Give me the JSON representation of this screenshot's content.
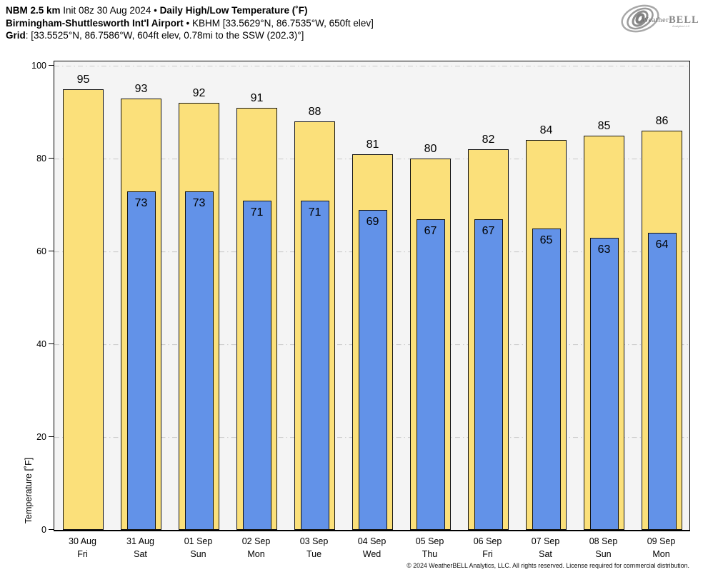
{
  "header": {
    "line1": {
      "model": "NBM 2.5 km",
      "init": "Init 08z 30 Aug 2024",
      "sep": "•",
      "title": "Daily High/Low Temperature (˚F)"
    },
    "line2": {
      "station": "Birmingham-Shuttlesworth Int'l Airport",
      "sep": "•",
      "meta": "KBHM [33.5629°N, 86.7535°W, 650ft elev]"
    },
    "line3": {
      "label": "Grid",
      "value": ": [33.5525°N, 86.7586°W, 604ft elev, 0.78mi to the SSW (202.3)°]"
    }
  },
  "logo": {
    "brand_weather": "Weather",
    "brand_bell": "BELL",
    "sub": "Analytics LLC"
  },
  "chart_data": {
    "type": "bar",
    "title": "Daily High/Low Temperature (°F)",
    "xlabel": "",
    "ylabel": "Temperature [˚F]",
    "ylim": [
      0,
      100
    ],
    "yticks": [
      0,
      20,
      40,
      60,
      80,
      100
    ],
    "grid": true,
    "legend_position": "none",
    "categories": [
      {
        "date": "30 Aug",
        "day": "Fri"
      },
      {
        "date": "31 Aug",
        "day": "Sat"
      },
      {
        "date": "01 Sep",
        "day": "Sun"
      },
      {
        "date": "02 Sep",
        "day": "Mon"
      },
      {
        "date": "03 Sep",
        "day": "Tue"
      },
      {
        "date": "04 Sep",
        "day": "Wed"
      },
      {
        "date": "05 Sep",
        "day": "Thu"
      },
      {
        "date": "06 Sep",
        "day": "Fri"
      },
      {
        "date": "07 Sep",
        "day": "Sat"
      },
      {
        "date": "08 Sep",
        "day": "Sun"
      },
      {
        "date": "09 Sep",
        "day": "Mon"
      }
    ],
    "series": [
      {
        "name": "High",
        "color": "#FBE07A",
        "values": [
          95,
          93,
          92,
          91,
          88,
          81,
          80,
          82,
          84,
          85,
          86
        ]
      },
      {
        "name": "Low",
        "color": "#6292E8",
        "values": [
          null,
          73,
          73,
          71,
          71,
          69,
          67,
          67,
          65,
          63,
          64
        ]
      }
    ],
    "colors": {
      "plot_background": "#F4F4F4",
      "gridline": "#C9C9C9",
      "bar_border": "#141414",
      "axis": "#000000"
    }
  },
  "footer": {
    "copyright": "© 2024 WeatherBELL Analytics, LLC. All rights reserved. License required for commercial distribution."
  }
}
